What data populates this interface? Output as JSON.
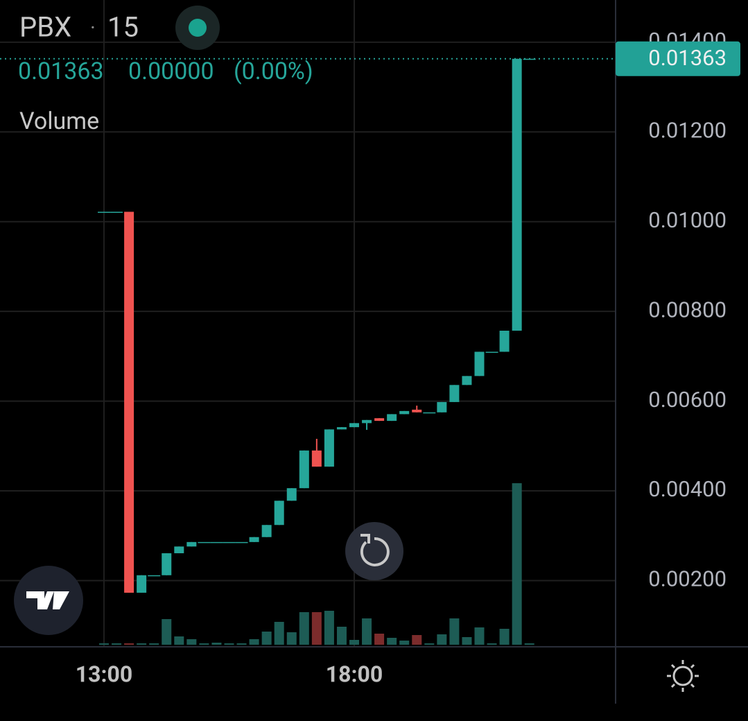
{
  "chart_data": {
    "type": "candlestick",
    "symbol": "PBX",
    "interval": "15",
    "legend": {
      "close": "0.01363",
      "change": "0.00000",
      "change_pct": "(0.00%)"
    },
    "volume_label": "Volume",
    "categories": [
      "13:00",
      null,
      null,
      null,
      null,
      null,
      null,
      null,
      null,
      null,
      null,
      null,
      null,
      null,
      null,
      null,
      null,
      null,
      null,
      null,
      "18:00",
      null,
      null,
      null,
      null,
      null,
      null,
      null,
      null,
      null,
      null,
      null,
      null,
      null,
      null
    ],
    "open": [
      0.01022,
      0.01022,
      0.01022,
      0.00173,
      0.00212,
      0.00212,
      0.00261,
      0.00276,
      0.00286,
      0.00286,
      0.00286,
      0.00286,
      0.00286,
      0.00297,
      0.00324,
      0.00378,
      0.00406,
      0.0049,
      0.00454,
      0.00537,
      0.00542,
      0.00551,
      0.00562,
      0.00556,
      0.00571,
      0.00581,
      0.00575,
      0.00575,
      0.00598,
      0.00636,
      0.00656,
      0.0071,
      0.0071,
      0.00757,
      0.01363
    ],
    "high": [
      0.01022,
      0.01022,
      0.01022,
      0.00212,
      0.00212,
      0.00261,
      0.00276,
      0.00286,
      0.00286,
      0.00286,
      0.00286,
      0.00286,
      0.00297,
      0.00324,
      0.00378,
      0.00406,
      0.0049,
      0.00516,
      0.00537,
      0.00542,
      0.00551,
      0.00558,
      0.00562,
      0.00571,
      0.00578,
      0.0059,
      0.00575,
      0.00598,
      0.00636,
      0.00656,
      0.0071,
      0.0071,
      0.00757,
      0.01363,
      0.01363
    ],
    "low": [
      0.01022,
      0.01022,
      0.00173,
      0.00173,
      0.00212,
      0.00212,
      0.00261,
      0.00276,
      0.00286,
      0.00286,
      0.00286,
      0.00286,
      0.00286,
      0.00297,
      0.00324,
      0.00378,
      0.00406,
      0.00454,
      0.00454,
      0.00537,
      0.00542,
      0.00536,
      0.00556,
      0.00556,
      0.00571,
      0.00575,
      0.00575,
      0.00575,
      0.00598,
      0.00636,
      0.00656,
      0.0071,
      0.0071,
      0.00757,
      0.01363
    ],
    "close": [
      0.01022,
      0.01022,
      0.00173,
      0.00212,
      0.00212,
      0.00261,
      0.00276,
      0.00286,
      0.00286,
      0.00286,
      0.00286,
      0.00286,
      0.00297,
      0.00324,
      0.00378,
      0.00406,
      0.0049,
      0.00454,
      0.00537,
      0.00542,
      0.00551,
      0.00558,
      0.00556,
      0.00571,
      0.00578,
      0.00575,
      0.00575,
      0.00598,
      0.00636,
      0.00656,
      0.0071,
      0.0071,
      0.00757,
      0.01363,
      0.01363
    ],
    "volume": [
      2,
      2,
      2,
      2,
      2,
      37,
      12,
      8,
      2,
      3,
      2,
      2,
      8,
      19,
      33,
      18,
      47,
      47,
      49,
      26,
      7,
      38,
      16,
      10,
      6,
      14,
      2,
      15,
      38,
      11,
      25,
      2,
      23,
      233,
      2
    ],
    "up_color": "#26a69a",
    "down_color": "#ef5350",
    "volume_up_color": "#1d5c55",
    "volume_down_color": "#7c2c2c",
    "ylim": [
      0.00054,
      0.01494
    ],
    "yticks": [
      {
        "value": 0.002,
        "label": "0.00200"
      },
      {
        "value": 0.004,
        "label": "0.00400"
      },
      {
        "value": 0.006,
        "label": "0.00600"
      },
      {
        "value": 0.008,
        "label": "0.00800"
      },
      {
        "value": 0.01,
        "label": "0.01000"
      },
      {
        "value": 0.012,
        "label": "0.01200"
      },
      {
        "value": 0.014,
        "label": "0.01400"
      }
    ],
    "last_price": {
      "value": 0.01363,
      "label": "0.01363"
    },
    "grid": true
  }
}
